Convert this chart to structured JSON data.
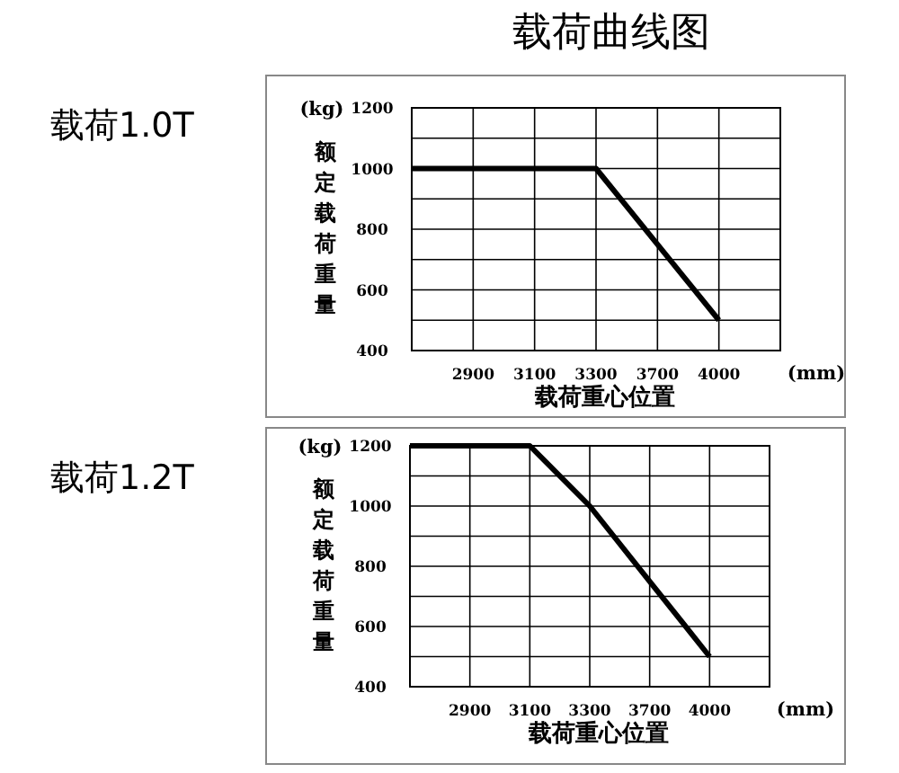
{
  "chart_data": [
    {
      "type": "line",
      "title": "载荷曲线图",
      "subtitle": "载荷1.0T",
      "ylabel": "额定载荷重量",
      "xlabel": "载荷重心位置",
      "annotations": [
        "(kg)",
        "(mm)"
      ],
      "categories": [
        null,
        "2900",
        "3100",
        "3300",
        "3700",
        "4000",
        null
      ],
      "series": [
        {
          "color": "#000000",
          "values": [
            1000,
            1000,
            1000,
            1000,
            750,
            500,
            null
          ]
        }
      ],
      "ylim": [
        400,
        1200
      ],
      "yticks": [
        400,
        {
          "value": 500,
          "label": null
        },
        600,
        {
          "value": 700,
          "label": null
        },
        800,
        {
          "value": 900,
          "label": null
        },
        1000,
        {
          "value": 1100,
          "label": null
        },
        1200
      ],
      "grid": true,
      "marker": "none",
      "line_style": "solid"
    },
    {
      "type": "line",
      "subtitle": "载荷1.2T",
      "ylabel": "额定载荷重量",
      "xlabel": "载荷重心位置",
      "annotations": [
        "(kg)",
        "(mm)"
      ],
      "categories": [
        null,
        "2900",
        "3100",
        "3300",
        "3700",
        "4000",
        null
      ],
      "series": [
        {
          "color": "#000000",
          "values": [
            1200,
            1200,
            1200,
            1000,
            750,
            500,
            null
          ]
        }
      ],
      "ylim": [
        400,
        1200
      ],
      "yticks": [
        400,
        {
          "value": 500,
          "label": null
        },
        600,
        {
          "value": 700,
          "label": null
        },
        800,
        {
          "value": 900,
          "label": null
        },
        1000,
        {
          "value": 1100,
          "label": null
        },
        1200
      ],
      "grid": true,
      "marker": "none",
      "line_style": "solid"
    }
  ]
}
